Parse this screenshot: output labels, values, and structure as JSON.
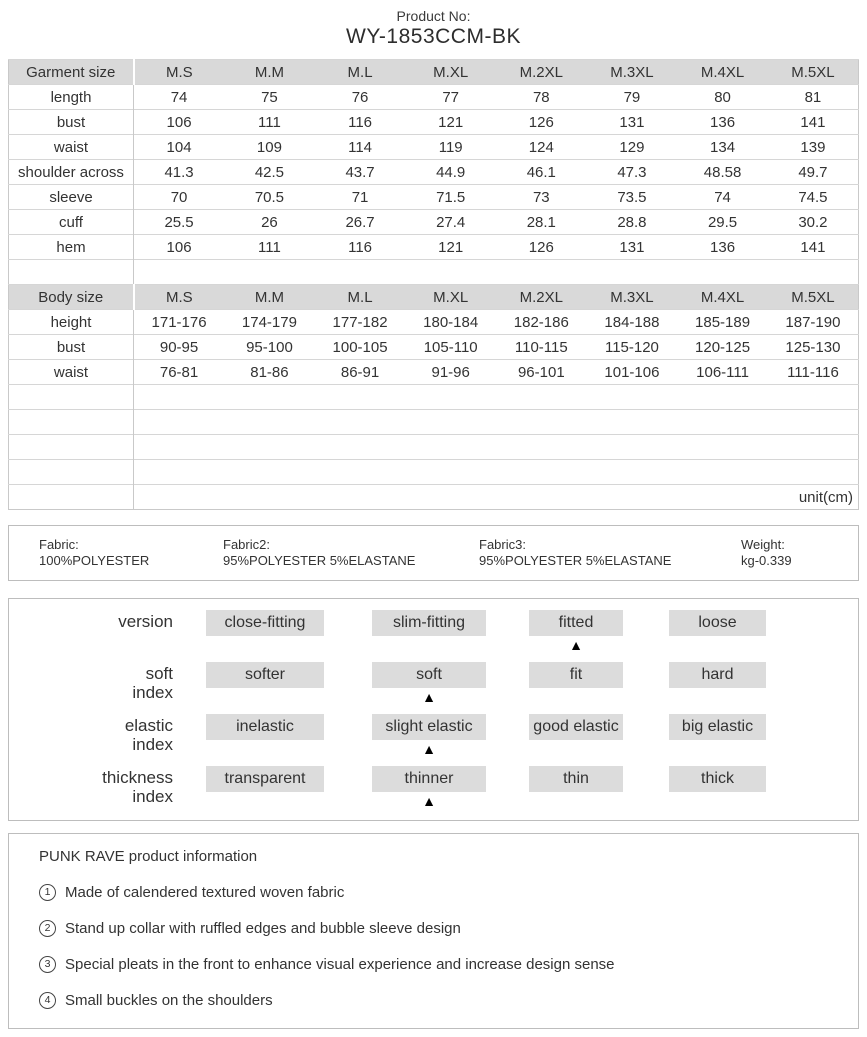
{
  "header": {
    "product_no_label": "Product No:",
    "product_no": "WY-1853CCM-BK"
  },
  "size_table": {
    "unit_label": "unit(cm)",
    "empty_rows_after_body": 4,
    "garment": {
      "title": "Garment size",
      "columns": [
        "M.S",
        "M.M",
        "M.L",
        "M.XL",
        "M.2XL",
        "M.3XL",
        "M.4XL",
        "M.5XL"
      ],
      "rows": [
        {
          "label": "length",
          "values": [
            "74",
            "75",
            "76",
            "77",
            "78",
            "79",
            "80",
            "81"
          ]
        },
        {
          "label": "bust",
          "values": [
            "106",
            "111",
            "116",
            "121",
            "126",
            "131",
            "136",
            "141"
          ]
        },
        {
          "label": "waist",
          "values": [
            "104",
            "109",
            "114",
            "119",
            "124",
            "129",
            "134",
            "139"
          ]
        },
        {
          "label": "shoulder across",
          "values": [
            "41.3",
            "42.5",
            "43.7",
            "44.9",
            "46.1",
            "47.3",
            "48.58",
            "49.7"
          ]
        },
        {
          "label": "sleeve",
          "values": [
            "70",
            "70.5",
            "71",
            "71.5",
            "73",
            "73.5",
            "74",
            "74.5"
          ]
        },
        {
          "label": "cuff",
          "values": [
            "25.5",
            "26",
            "26.7",
            "27.4",
            "28.1",
            "28.8",
            "29.5",
            "30.2"
          ]
        },
        {
          "label": "hem",
          "values": [
            "106",
            "111",
            "116",
            "121",
            "126",
            "131",
            "136",
            "141"
          ]
        }
      ]
    },
    "body": {
      "title": "Body size",
      "columns": [
        "M.S",
        "M.M",
        "M.L",
        "M.XL",
        "M.2XL",
        "M.3XL",
        "M.4XL",
        "M.5XL"
      ],
      "rows": [
        {
          "label": "height",
          "values": [
            "171-176",
            "174-179",
            "177-182",
            "180-184",
            "182-186",
            "184-188",
            "185-189",
            "187-190"
          ]
        },
        {
          "label": "bust",
          "values": [
            "90-95",
            "95-100",
            "100-105",
            "105-110",
            "110-115",
            "115-120",
            "120-125",
            "125-130"
          ]
        },
        {
          "label": "waist",
          "values": [
            "76-81",
            "81-86",
            "86-91",
            "91-96",
            "96-101",
            "101-106",
            "106-111",
            "111-116"
          ]
        }
      ]
    }
  },
  "fabric_info": {
    "items": [
      {
        "label": "Fabric:",
        "value": "100%POLYESTER"
      },
      {
        "label": "Fabric2:",
        "value": "95%POLYESTER 5%ELASTANE"
      },
      {
        "label": "Fabric3:",
        "value": "95%POLYESTER 5%ELASTANE"
      },
      {
        "label": "Weight:",
        "value": "kg-0.339"
      }
    ]
  },
  "index_panel": {
    "marker": "▲",
    "rows": [
      {
        "label_lines": [
          "version"
        ],
        "options": [
          "close-fitting",
          "slim-fitting",
          "fitted",
          "loose"
        ],
        "selected_index": 2
      },
      {
        "label_lines": [
          "soft",
          "index"
        ],
        "options": [
          "softer",
          "soft",
          "fit",
          "hard"
        ],
        "selected_index": 1
      },
      {
        "label_lines": [
          "elastic",
          "index"
        ],
        "options": [
          "inelastic",
          "slight elastic",
          "good elastic",
          "big elastic"
        ],
        "selected_index": 1
      },
      {
        "label_lines": [
          "thickness",
          "index"
        ],
        "options": [
          "transparent",
          "thinner",
          "thin",
          "thick"
        ],
        "selected_index": 1
      }
    ]
  },
  "product_info": {
    "title": "PUNK RAVE product information",
    "items": [
      {
        "bullet": "1",
        "text": "Made of calendered textured woven fabric"
      },
      {
        "bullet": "2",
        "text": "Stand up collar with ruffled edges and bubble sleeve design"
      },
      {
        "bullet": "3",
        "text": "Special pleats in the front to enhance visual experience and increase design sense"
      },
      {
        "bullet": "4",
        "text": "Small buckles on the shoulders"
      }
    ]
  },
  "colors": {
    "table_header_fill": "#d9d9d9",
    "option_box_fill": "#dcdcdc",
    "table_border": "#c9c9c9",
    "panel_border": "#bdbdbd",
    "text": "#333333",
    "marker": "#000000"
  }
}
